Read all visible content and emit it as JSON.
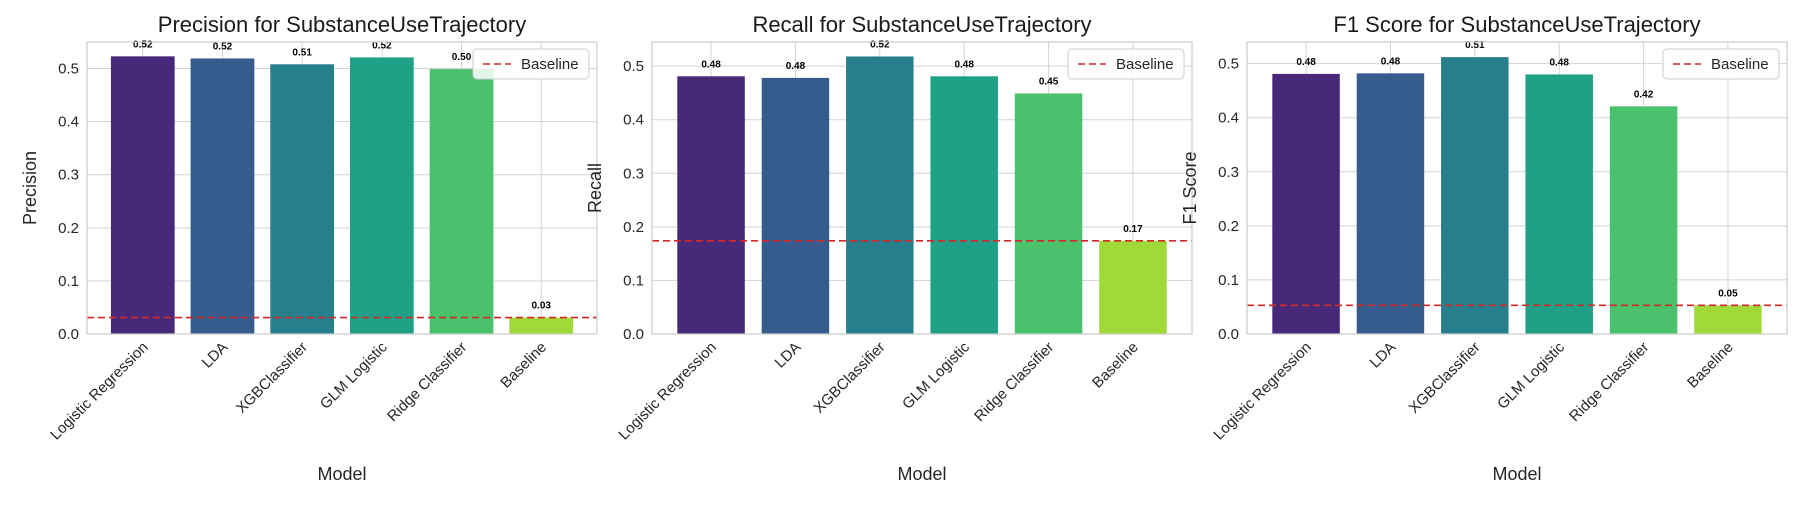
{
  "chart_data": [
    {
      "type": "bar",
      "title": "Precision for SubstanceUseTrajectory",
      "xlabel": "Model",
      "ylabel": "Precision",
      "categories": [
        "Logistic Regression",
        "LDA",
        "XGBClassifier",
        "GLM Logistic",
        "Ridge Classifier",
        "Baseline"
      ],
      "values": [
        0.523,
        0.519,
        0.508,
        0.521,
        0.499,
        0.031
      ],
      "value_labels": [
        "0.52",
        "0.52",
        "0.51",
        "0.52",
        "0.50",
        "0.03"
      ],
      "yticks": [
        "0.0",
        "0.1",
        "0.2",
        "0.3",
        "0.4",
        "0.5"
      ],
      "ylim": [
        0,
        0.55
      ],
      "baseline": 0.031,
      "legend": [
        "Baseline"
      ],
      "legend_position": "upper right",
      "grid": true
    },
    {
      "type": "bar",
      "title": "Recall for SubstanceUseTrajectory",
      "xlabel": "Model",
      "ylabel": "Recall",
      "categories": [
        "Logistic Regression",
        "LDA",
        "XGBClassifier",
        "GLM Logistic",
        "Ridge Classifier",
        "Baseline"
      ],
      "values": [
        0.481,
        0.478,
        0.518,
        0.481,
        0.449,
        0.174
      ],
      "value_labels": [
        "0.48",
        "0.48",
        "0.52",
        "0.48",
        "0.45",
        "0.17"
      ],
      "yticks": [
        "0.0",
        "0.1",
        "0.2",
        "0.3",
        "0.4",
        "0.5"
      ],
      "ylim": [
        0,
        0.545
      ],
      "baseline": 0.174,
      "legend": [
        "Baseline"
      ],
      "legend_position": "upper right",
      "grid": true
    },
    {
      "type": "bar",
      "title": "F1 Score for SubstanceUseTrajectory",
      "xlabel": "Model",
      "ylabel": "F1 Score",
      "categories": [
        "Logistic Regression",
        "LDA",
        "XGBClassifier",
        "GLM Logistic",
        "Ridge Classifier",
        "Baseline"
      ],
      "values": [
        0.481,
        0.482,
        0.512,
        0.48,
        0.421,
        0.053
      ],
      "value_labels": [
        "0.48",
        "0.48",
        "0.51",
        "0.48",
        "0.42",
        "0.05"
      ],
      "yticks": [
        "0.0",
        "0.1",
        "0.2",
        "0.3",
        "0.4",
        "0.5"
      ],
      "ylim": [
        0,
        0.54
      ],
      "baseline": 0.053,
      "legend": [
        "Baseline"
      ],
      "legend_position": "upper right",
      "grid": true
    }
  ],
  "colors": {
    "bars": [
      "#482878",
      "#365c8d",
      "#277f8e",
      "#1fa187",
      "#4ac16d",
      "#a0da39"
    ],
    "baseline_line": "#d62728",
    "grid": "#d3d3d3",
    "spine": "#cccccc"
  }
}
